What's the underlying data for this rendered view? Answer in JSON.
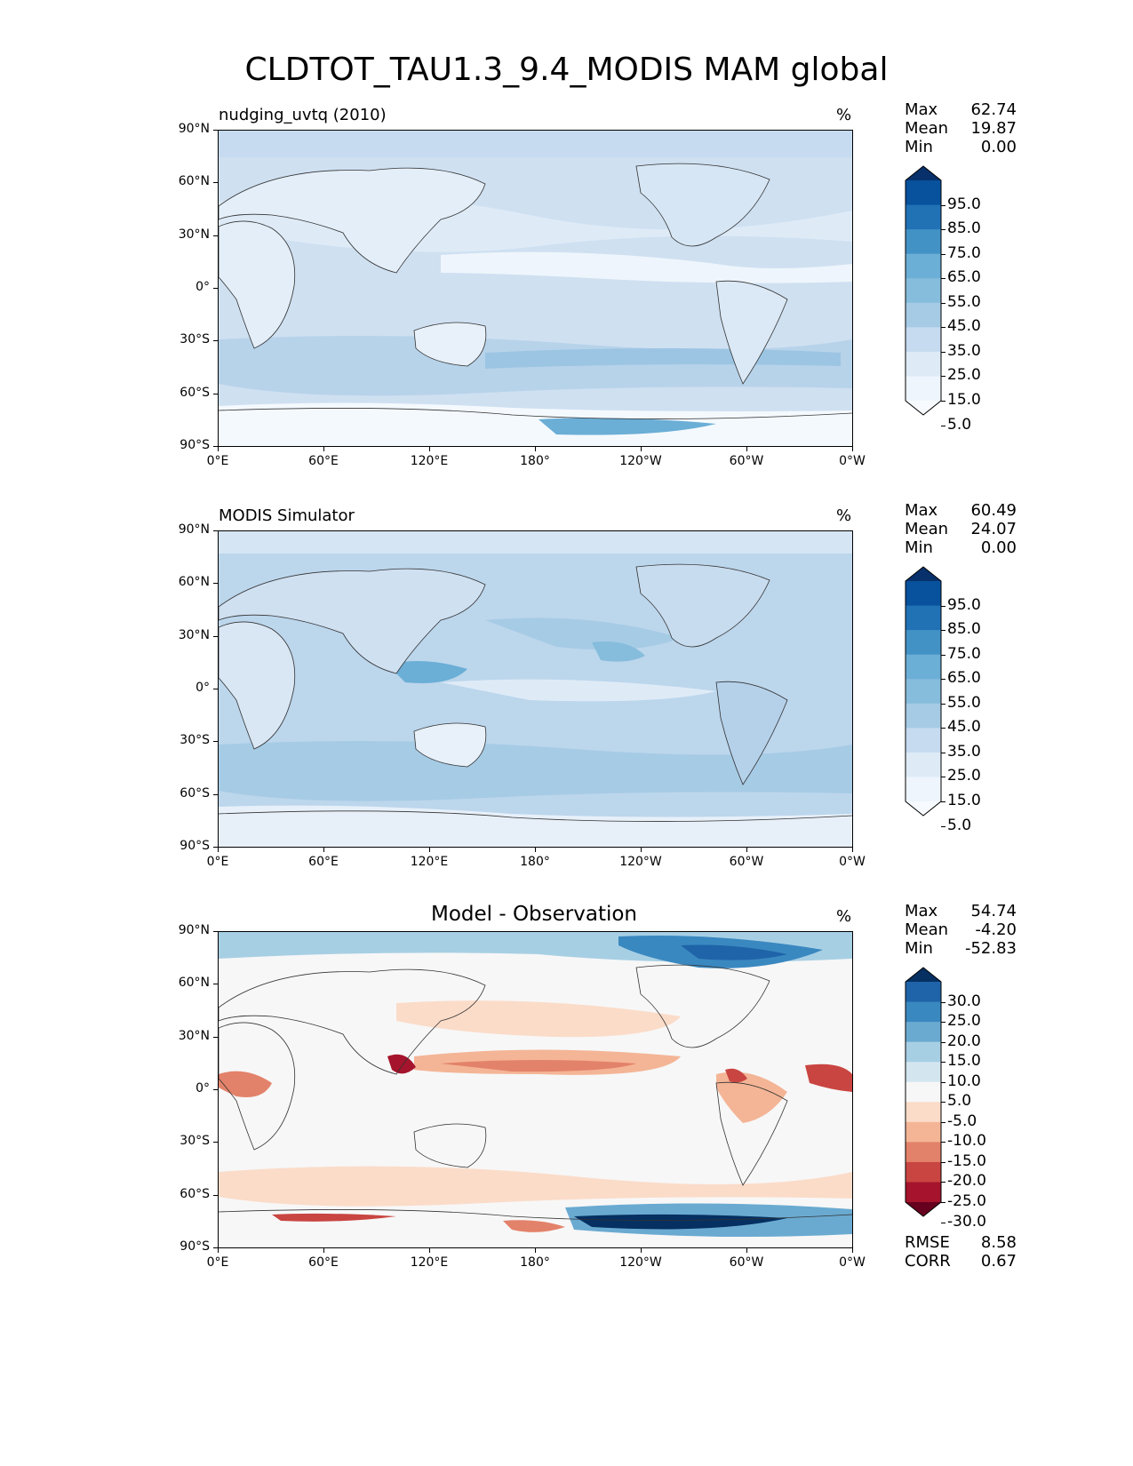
{
  "title": "CLDTOT_TAU1.3_9.4_MODIS MAM global",
  "panels": [
    {
      "title": "nudging_uvtq (2010)",
      "units": "%",
      "stats": [
        {
          "label": "Max",
          "value": "62.74"
        },
        {
          "label": "Mean",
          "value": "19.87"
        },
        {
          "label": "Min",
          "value": "0.00"
        }
      ],
      "colorbar": {
        "labels": [
          "95.0",
          "85.0",
          "75.0",
          "65.0",
          "55.0",
          "45.0",
          "35.0",
          "25.0",
          "15.0",
          "5.0"
        ],
        "colors": [
          "#08306b",
          "#08519c",
          "#2171b5",
          "#4292c6",
          "#6baed6",
          "#86bcdc",
          "#a6cbe5",
          "#c6dbef",
          "#deebf7",
          "#eef5fc",
          "#f7fbff"
        ]
      }
    },
    {
      "title": "MODIS Simulator",
      "units": "%",
      "stats": [
        {
          "label": "Max",
          "value": "60.49"
        },
        {
          "label": "Mean",
          "value": "24.07"
        },
        {
          "label": "Min",
          "value": "0.00"
        }
      ],
      "colorbar": {
        "labels": [
          "95.0",
          "85.0",
          "75.0",
          "65.0",
          "55.0",
          "45.0",
          "35.0",
          "25.0",
          "15.0",
          "5.0"
        ],
        "colors": [
          "#08306b",
          "#08519c",
          "#2171b5",
          "#4292c6",
          "#6baed6",
          "#86bcdc",
          "#a6cbe5",
          "#c6dbef",
          "#deebf7",
          "#eef5fc",
          "#f7fbff"
        ]
      }
    },
    {
      "title": "Model - Observation",
      "units": "%",
      "stats": [
        {
          "label": "Max",
          "value": "54.74"
        },
        {
          "label": "Mean",
          "value": "-4.20"
        },
        {
          "label": "Min",
          "value": "-52.83"
        }
      ],
      "colorbar": {
        "labels": [
          "30.0",
          "25.0",
          "20.0",
          "15.0",
          "10.0",
          "5.0",
          "-5.0",
          "-10.0",
          "-15.0",
          "-20.0",
          "-25.0",
          "-30.0"
        ],
        "colors": [
          "#053061",
          "#1f63a8",
          "#3a88c0",
          "#6aaad1",
          "#a7cfe4",
          "#d3e6f0",
          "#f7f7f7",
          "#fbdcc9",
          "#f4b596",
          "#e3826a",
          "#c94541",
          "#a5142c",
          "#67001f"
        ]
      },
      "metrics": [
        {
          "label": "RMSE",
          "value": "8.58"
        },
        {
          "label": "CORR",
          "value": "0.67"
        }
      ]
    }
  ],
  "axes": {
    "lat_labels": [
      "90°N",
      "60°N",
      "30°N",
      "0°",
      "30°S",
      "60°S",
      "90°S"
    ],
    "lon_labels": [
      "0°E",
      "60°E",
      "120°E",
      "180°",
      "120°W",
      "60°W",
      "0°W"
    ]
  },
  "colors": {
    "ocean_low": "#c6dbef",
    "land_low": "#eef5fc",
    "diff_neutral": "#f7f7f7"
  },
  "chart_data": [
    {
      "type": "heatmap",
      "title": "nudging_uvtq (2010)",
      "units": "%",
      "x": {
        "label": "longitude",
        "range": [
          0,
          360
        ],
        "ticks": [
          "0°E",
          "60°E",
          "120°E",
          "180°",
          "120°W",
          "60°W",
          "0°W"
        ]
      },
      "y": {
        "label": "latitude",
        "range": [
          -90,
          90
        ],
        "ticks": [
          "90°N",
          "60°N",
          "30°N",
          "0°",
          "30°S",
          "60°S",
          "90°S"
        ]
      },
      "levels": [
        0,
        5,
        10,
        20,
        30,
        40,
        50,
        60,
        70,
        80,
        90,
        100
      ],
      "stats": {
        "max": 62.74,
        "mean": 19.87,
        "min": 0.0
      }
    },
    {
      "type": "heatmap",
      "title": "MODIS Simulator",
      "units": "%",
      "x": {
        "label": "longitude",
        "range": [
          0,
          360
        ]
      },
      "y": {
        "label": "latitude",
        "range": [
          -90,
          90
        ]
      },
      "levels": [
        0,
        5,
        10,
        20,
        30,
        40,
        50,
        60,
        70,
        80,
        90,
        100
      ],
      "stats": {
        "max": 60.49,
        "mean": 24.07,
        "min": 0.0
      }
    },
    {
      "type": "heatmap",
      "title": "Model - Observation",
      "units": "%",
      "x": {
        "label": "longitude",
        "range": [
          0,
          360
        ]
      },
      "y": {
        "label": "latitude",
        "range": [
          -90,
          90
        ]
      },
      "levels": [
        -35,
        -30,
        -25,
        -20,
        -15,
        -10,
        -5,
        5,
        10,
        15,
        20,
        25,
        30,
        35
      ],
      "stats": {
        "max": 54.74,
        "mean": -4.2,
        "min": -52.83,
        "rmse": 8.58,
        "corr": 0.67
      }
    }
  ]
}
